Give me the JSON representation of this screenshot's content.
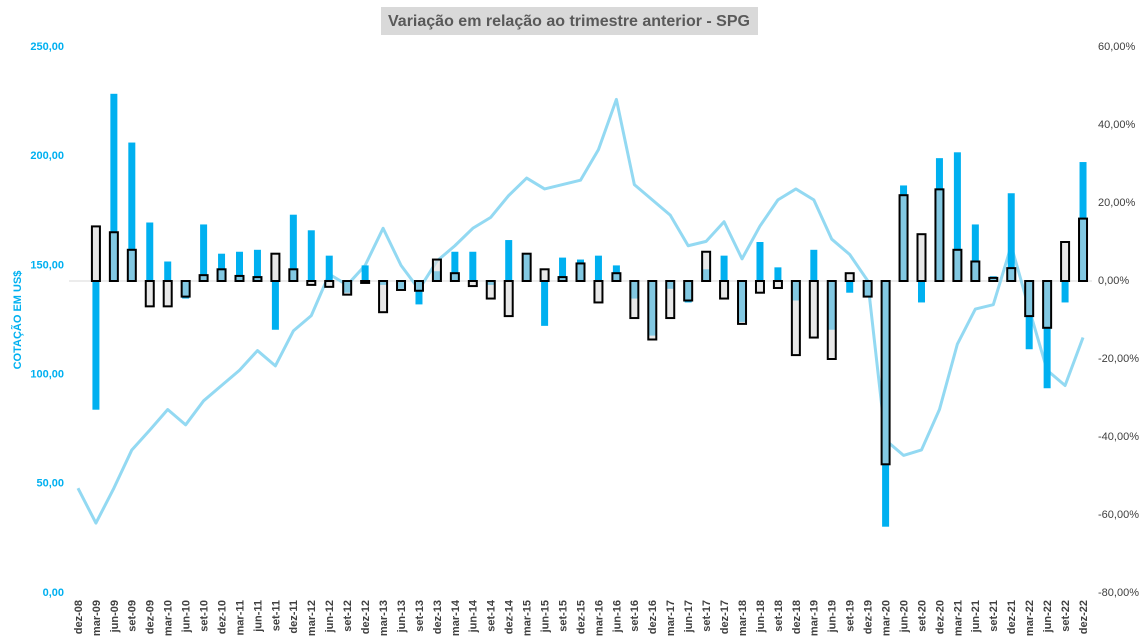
{
  "chart_data": {
    "type": "combo",
    "title": "Variação em relação ao trimestre anterior - SPG",
    "y_label": "COTAÇÃO EM US$",
    "categories": [
      "dez-08",
      "mar-09",
      "jun-09",
      "set-09",
      "dez-09",
      "mar-10",
      "jun-10",
      "set-10",
      "dez-10",
      "mar-11",
      "jun-11",
      "set-11",
      "dez-11",
      "mar-12",
      "jun-12",
      "set-12",
      "dez-12",
      "mar-13",
      "jun-13",
      "set-13",
      "dez-13",
      "mar-14",
      "jun-14",
      "set-14",
      "dez-14",
      "mar-15",
      "jun-15",
      "set-15",
      "dez-15",
      "mar-16",
      "jun-16",
      "set-16",
      "dez-16",
      "mar-17",
      "jun-17",
      "set-17",
      "dez-17",
      "mar-18",
      "jun-18",
      "set-18",
      "dez-18",
      "mar-19",
      "jun-19",
      "set-19",
      "dez-19",
      "mar-20",
      "jun-20",
      "set-20",
      "dez-20",
      "mar-21",
      "jun-21",
      "set-21",
      "dez-21",
      "mar-22",
      "jun-22",
      "set-22",
      "dez-22"
    ],
    "series": [
      {
        "type": "line",
        "axis": "y",
        "color": "#93d9f2",
        "values": [
          48,
          32,
          48,
          65.5,
          74.6,
          84,
          77,
          88,
          95,
          102,
          111,
          104,
          120,
          127,
          146,
          141,
          150,
          167,
          150,
          139,
          152,
          159,
          167,
          172,
          182,
          190,
          185,
          187,
          189,
          203,
          226,
          187,
          180,
          173,
          159,
          161,
          170,
          153,
          168,
          180,
          185,
          180,
          162,
          155,
          143,
          70,
          63,
          65.5,
          84,
          114,
          130,
          132,
          159,
          130,
          102,
          95,
          117
        ]
      },
      {
        "type": "bar",
        "axis": "y2",
        "color": "#00b0f0",
        "style": "solid",
        "values": [
          null,
          -33,
          48,
          35.5,
          15,
          5,
          -4.5,
          14.5,
          7,
          7.5,
          8,
          -12.5,
          17,
          13,
          6.5,
          -3,
          4,
          -1,
          -2,
          -6,
          2.5,
          7.5,
          7.5,
          -1,
          10.5,
          7,
          -11.5,
          6,
          5.5,
          6.5,
          4,
          -4.5,
          -14,
          -2,
          -5.5,
          3,
          6.5,
          -10.5,
          10,
          3.5,
          -5,
          8,
          -12.5,
          -3,
          -4,
          -63,
          24.5,
          -5.5,
          31.5,
          33,
          14.5,
          1.2,
          22.5,
          -17.5,
          -27.5,
          -5.5,
          30.5
        ]
      },
      {
        "type": "bar",
        "axis": "y2",
        "color": "#d9d9d9",
        "style": "outlined",
        "values": [
          null,
          14,
          12.5,
          8,
          -6.5,
          -6.5,
          -4,
          1.5,
          3,
          1.3,
          1,
          7,
          3,
          -1,
          -1.5,
          -3.5,
          -0.5,
          -8,
          -2.3,
          -2.5,
          5.5,
          2,
          -1.3,
          -4.5,
          -9,
          7,
          3,
          1,
          4.5,
          -5.5,
          2,
          -9.5,
          -15,
          -9.5,
          -5,
          7.5,
          -4.5,
          -11,
          -3,
          -1.8,
          -19,
          -14.5,
          -20,
          2,
          -4,
          -47,
          22,
          12,
          23.5,
          8,
          5,
          0.8,
          3.3,
          -9,
          -12,
          10,
          16
        ]
      }
    ],
    "ylim": [
      0,
      250
    ],
    "yticks": [
      {
        "value": 0,
        "label": "0,00"
      },
      {
        "value": 50,
        "label": "50,00"
      },
      {
        "value": 100,
        "label": "100,00"
      },
      {
        "value": 150,
        "label": "150,00"
      },
      {
        "value": 200,
        "label": "200,00"
      },
      {
        "value": 250,
        "label": "250,00"
      }
    ],
    "y2lim": [
      -80,
      60
    ],
    "y2ticks": [
      {
        "value": -80,
        "label": "-80,00%"
      },
      {
        "value": -60,
        "label": "-60,00%"
      },
      {
        "value": -40,
        "label": "-40,00%"
      },
      {
        "value": -20,
        "label": "-20,00%"
      },
      {
        "value": 0,
        "label": "0,00%"
      },
      {
        "value": 20,
        "label": "20,00%"
      },
      {
        "value": 40,
        "label": "40,00%"
      },
      {
        "value": 60,
        "label": "60,00%"
      }
    ],
    "grid": false
  }
}
